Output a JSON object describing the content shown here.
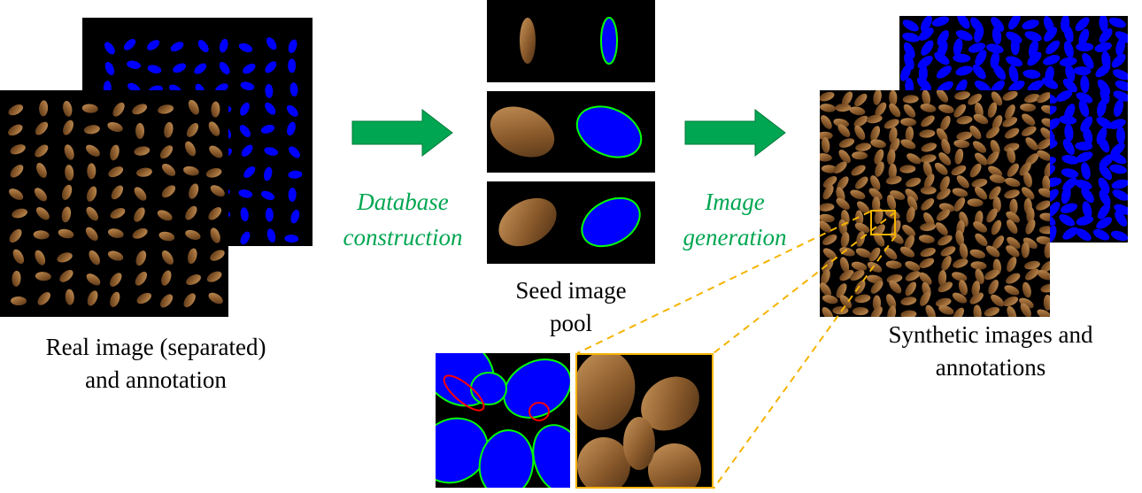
{
  "colors": {
    "arrow_green": "#00a651",
    "label_green": "#00a651",
    "mask_blue": "#0000ff",
    "outline_green": "#00ff00",
    "zoom_orange": "#f5b400",
    "error_red": "#ff0000",
    "seed_brown": "#8a5a2b",
    "background": "#000000"
  },
  "captions": {
    "real": [
      "Real image (separated)",
      "and annotation"
    ],
    "seed_pool": [
      "Seed image",
      "pool"
    ],
    "synthetic": [
      "Synthetic images and",
      "annotations"
    ]
  },
  "steps": {
    "database": [
      "Database",
      "construction"
    ],
    "generation": [
      "Image",
      "generation"
    ]
  },
  "icons": {
    "arrow1": "right-arrow-icon",
    "arrow2": "right-arrow-icon"
  }
}
